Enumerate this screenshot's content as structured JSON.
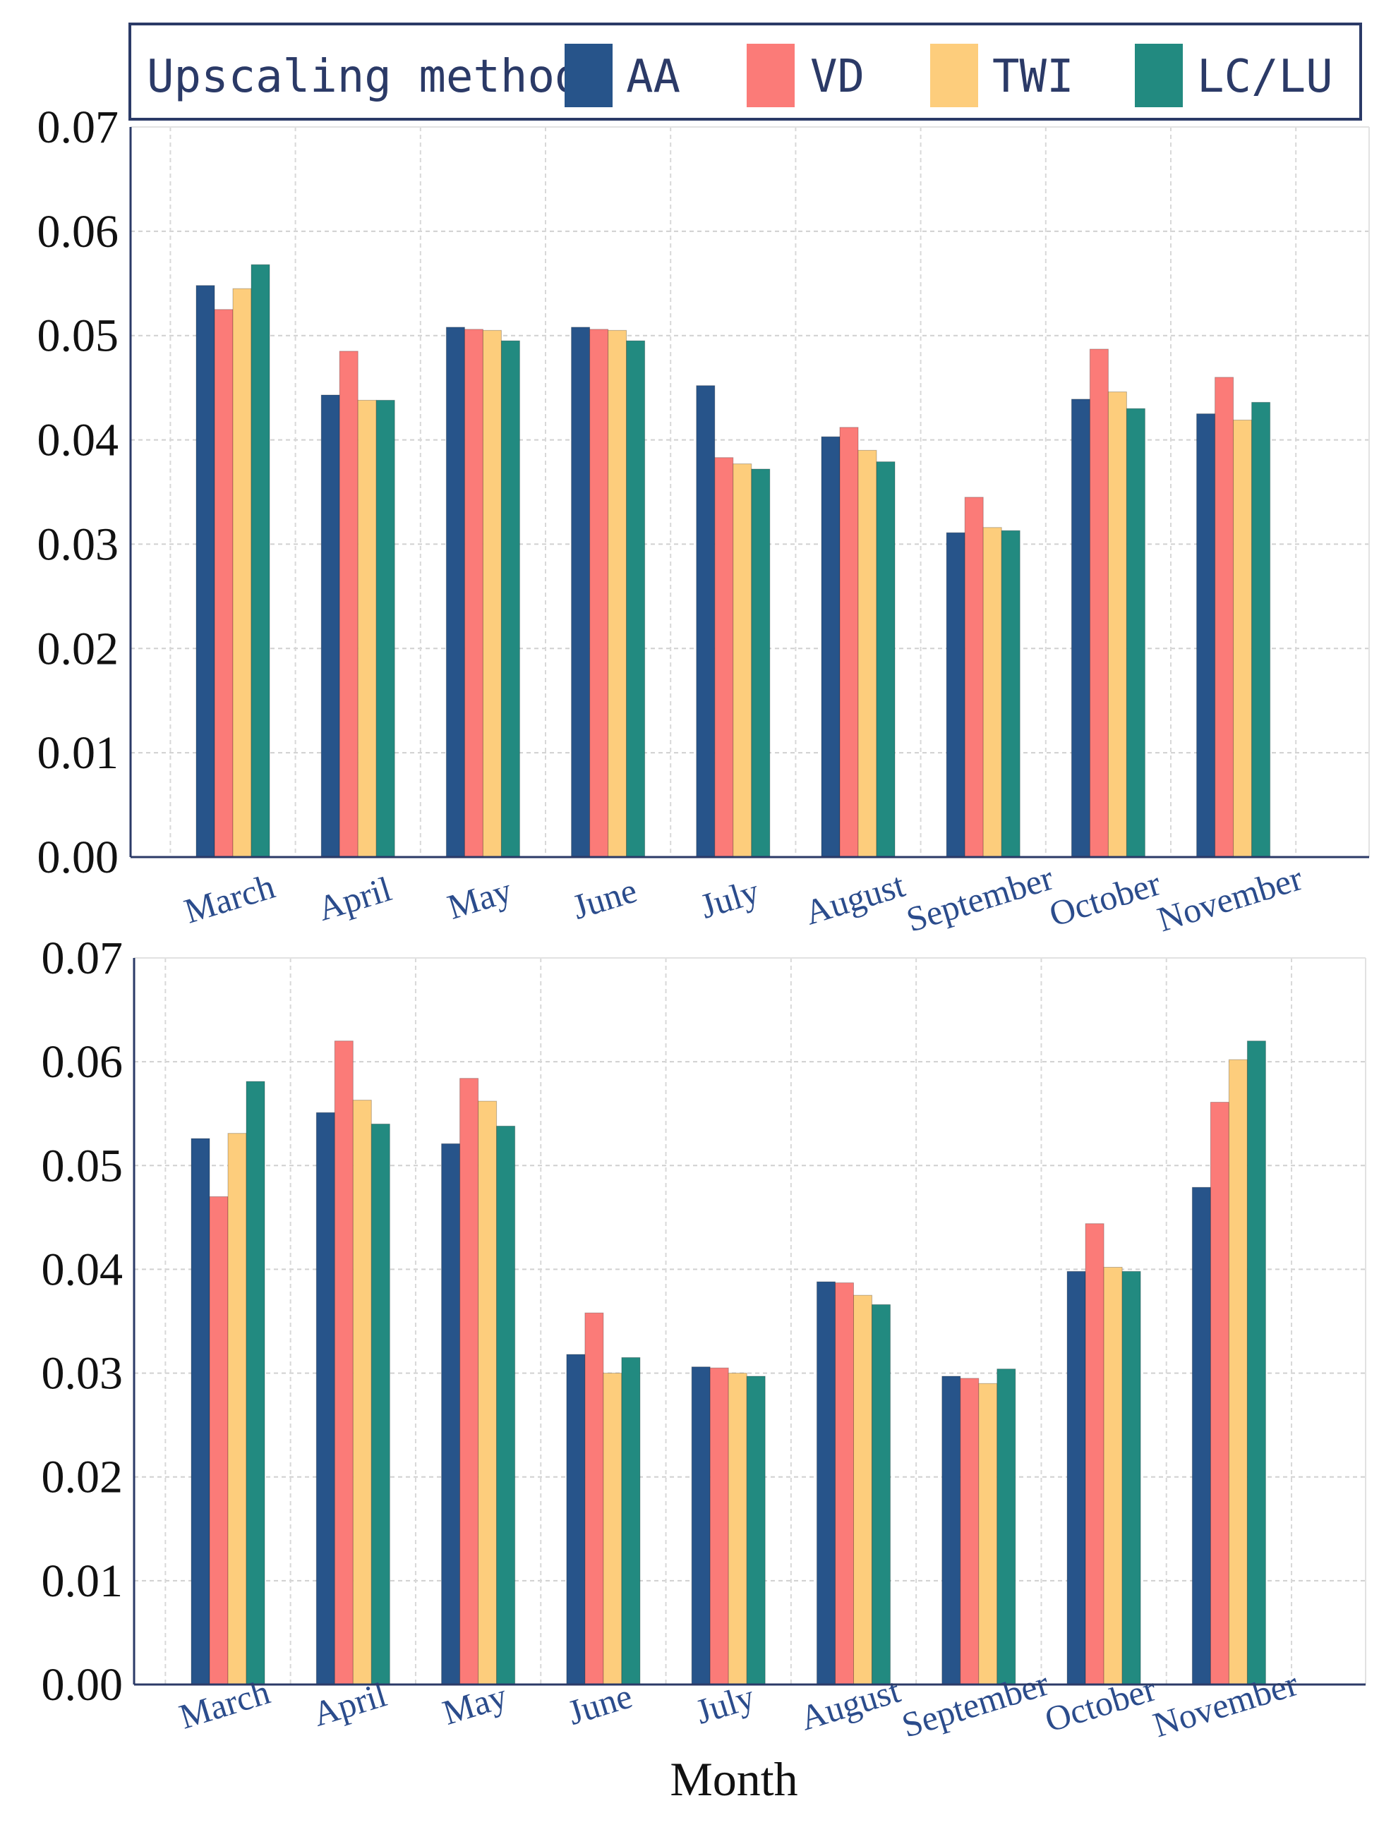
{
  "legend": {
    "title": "Upscaling method",
    "entries": [
      {
        "name": "AA",
        "color": "#27548a"
      },
      {
        "name": "VD",
        "color": "#fb7b78"
      },
      {
        "name": "TWI",
        "color": "#fdcd7c"
      },
      {
        "name": "LC/LU",
        "color": "#228a80"
      }
    ]
  },
  "chart_data": [
    {
      "type": "bar",
      "title": "",
      "xlabel": "",
      "ylabel": "",
      "ylim": [
        0,
        0.07
      ],
      "yticks": [
        "0.00",
        "0.01",
        "0.02",
        "0.03",
        "0.04",
        "0.05",
        "0.06",
        "0.07"
      ],
      "grid": true,
      "categories": [
        "March",
        "April",
        "May",
        "June",
        "July",
        "August",
        "September",
        "October",
        "November"
      ],
      "series": [
        {
          "name": "AA",
          "color": "#27548a",
          "values": [
            0.0548,
            0.0443,
            0.0508,
            0.0508,
            0.0452,
            0.0403,
            0.0311,
            0.0439,
            0.0425
          ]
        },
        {
          "name": "LC/LU",
          "color": "#228a80",
          "values": [
            0.0568,
            0.0438,
            0.0495,
            0.0495,
            0.0372,
            0.0379,
            0.0313,
            0.043,
            0.0436
          ]
        },
        {
          "name": "TWI",
          "color": "#fdcd7c",
          "values": [
            0.0545,
            0.0438,
            0.0505,
            0.0505,
            0.0377,
            0.039,
            0.0316,
            0.0446,
            0.0419
          ]
        },
        {
          "name": "VD",
          "color": "#fb7b78",
          "values": [
            0.0525,
            0.0485,
            0.0506,
            0.0506,
            0.0383,
            0.0412,
            0.0345,
            0.0487,
            0.046
          ]
        }
      ]
    },
    {
      "type": "bar",
      "title": "",
      "xlabel": "Month",
      "ylabel": "",
      "ylim": [
        0,
        0.07
      ],
      "yticks": [
        "0.00",
        "0.01",
        "0.02",
        "0.03",
        "0.04",
        "0.05",
        "0.06",
        "0.07"
      ],
      "grid": true,
      "categories": [
        "March",
        "April",
        "May",
        "June",
        "July",
        "August",
        "September",
        "October",
        "November"
      ],
      "series": [
        {
          "name": "AA",
          "color": "#27548a",
          "values": [
            0.0526,
            0.0551,
            0.0521,
            0.0318,
            0.0306,
            0.0388,
            0.0297,
            0.0398,
            0.0479
          ]
        },
        {
          "name": "LC/LU",
          "color": "#228a80",
          "values": [
            0.0581,
            0.054,
            0.0538,
            0.0315,
            0.0297,
            0.0366,
            0.0304,
            0.0398,
            0.062
          ]
        },
        {
          "name": "TWI",
          "color": "#fdcd7c",
          "values": [
            0.0531,
            0.0563,
            0.0562,
            0.03,
            0.03,
            0.0375,
            0.029,
            0.0402,
            0.0602
          ]
        },
        {
          "name": "VD",
          "color": "#fb7b78",
          "values": [
            0.047,
            0.062,
            0.0584,
            0.0358,
            0.0305,
            0.0387,
            0.0295,
            0.0444,
            0.0561
          ]
        }
      ]
    }
  ]
}
